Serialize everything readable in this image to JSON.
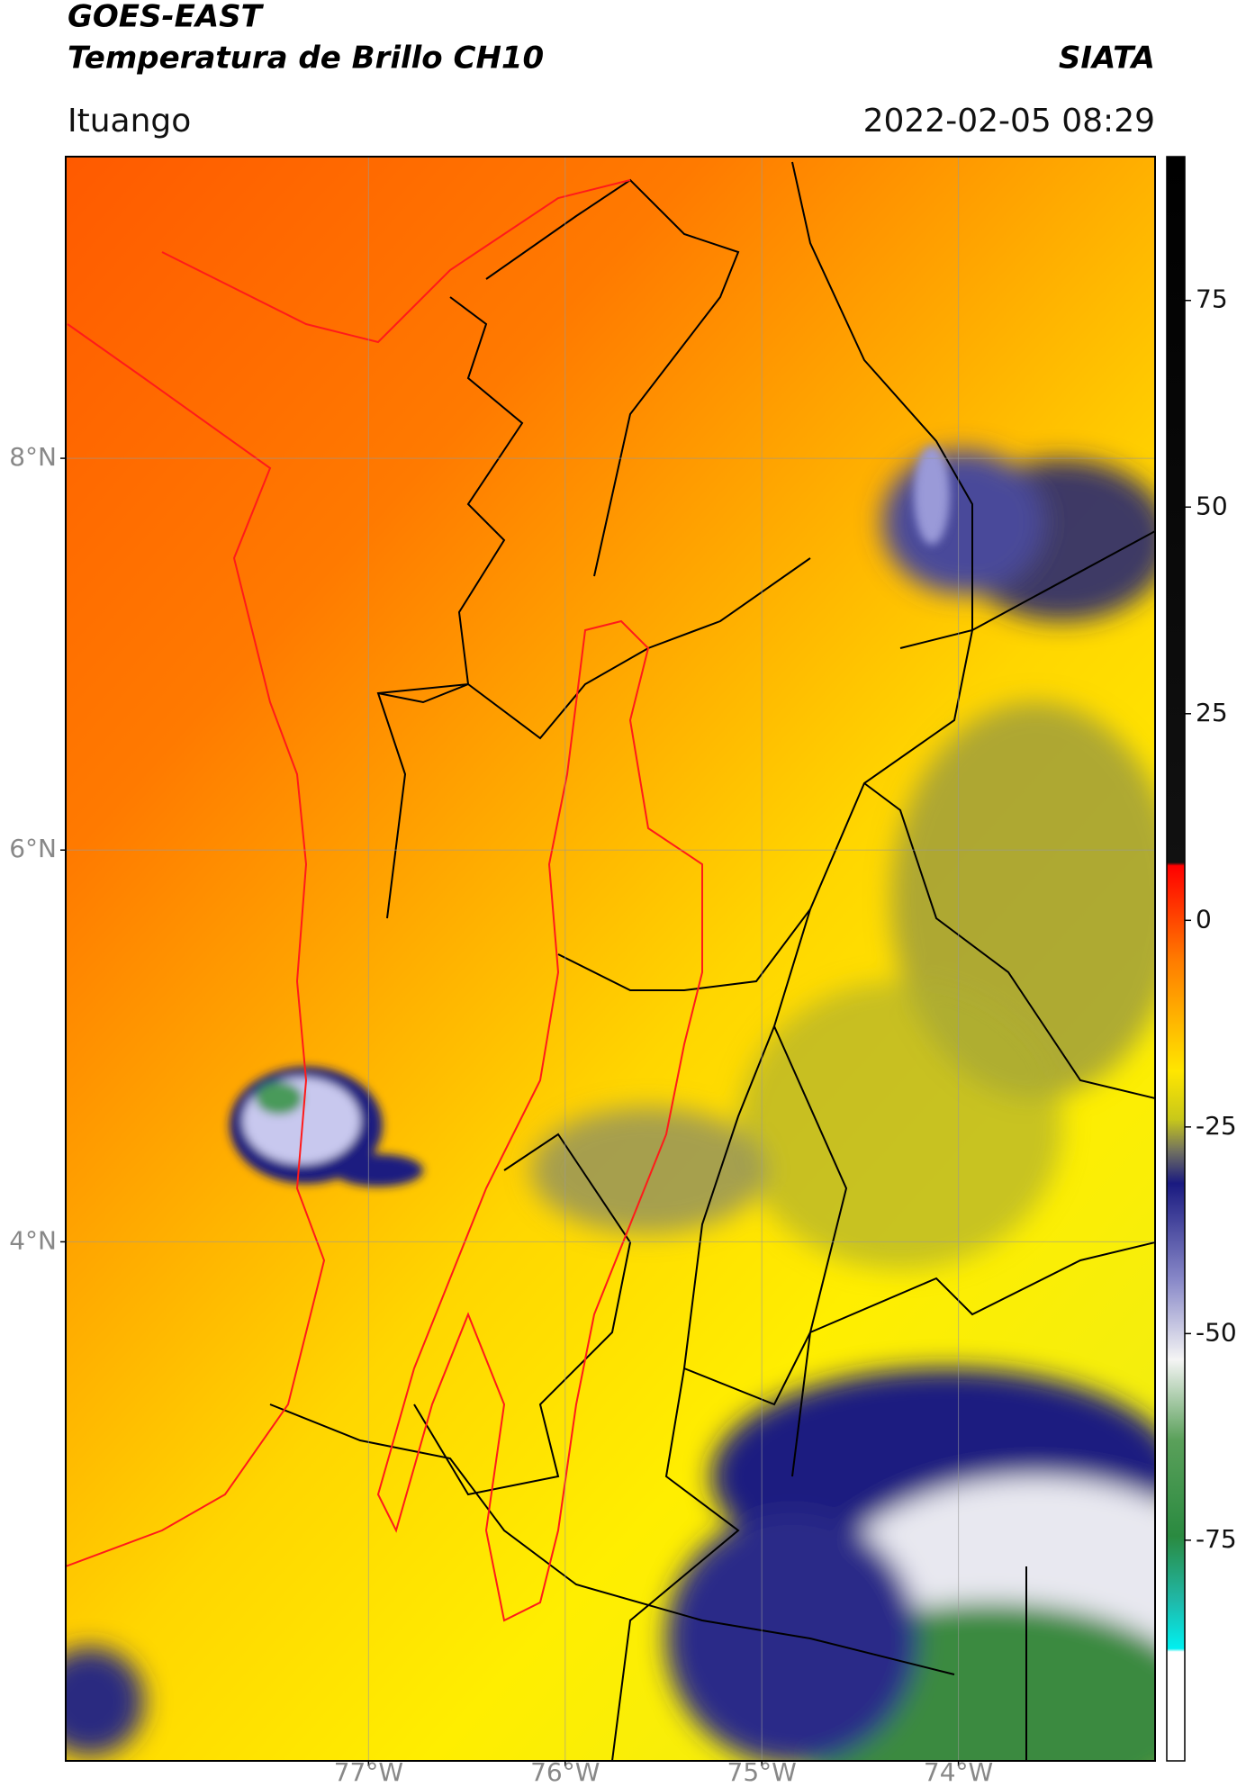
{
  "header": {
    "title": "GOES-EAST",
    "subtitle": "Temperatura de Brillo CH10",
    "agency": "SIATA",
    "location": "Ituango",
    "timestamp": "2022-02-05 08:29"
  },
  "chart_data": {
    "type": "map",
    "xlim": [
      -78.54,
      -73.0
    ],
    "ylim": [
      1.35,
      9.54
    ],
    "xticks": [
      {
        "value": -77,
        "label": "77°W"
      },
      {
        "value": -76,
        "label": "76°W"
      },
      {
        "value": -75,
        "label": "75°W"
      },
      {
        "value": -74,
        "label": "74°W"
      }
    ],
    "yticks": [
      {
        "value": 8,
        "label": "8°N"
      },
      {
        "value": 6,
        "label": "6°N"
      },
      {
        "value": 4,
        "label": "4°N"
      }
    ],
    "grid": true,
    "colorbar": {
      "lim": [
        -101.7,
        92.4
      ],
      "ticks": [
        75,
        50,
        25,
        0,
        -25,
        -50,
        -75
      ]
    }
  }
}
